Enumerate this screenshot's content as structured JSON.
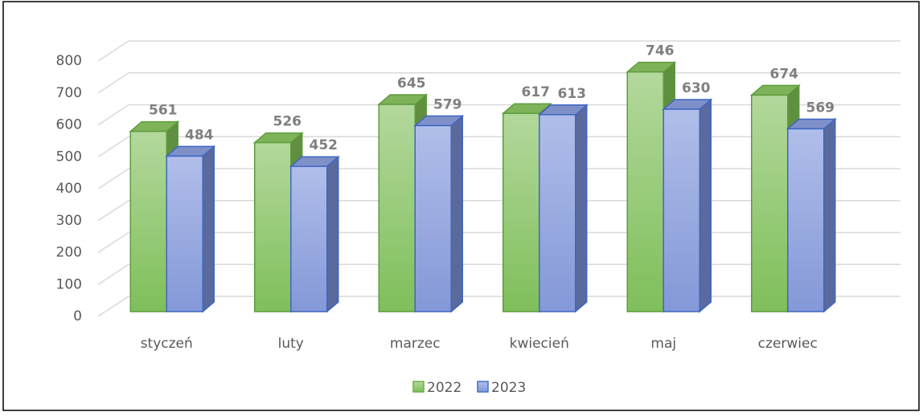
{
  "chart_data": {
    "type": "bar3d",
    "categories": [
      "styczeń",
      "luty",
      "marzec",
      "kwiecień",
      "maj",
      "czerwiec"
    ],
    "series": [
      {
        "name": "2022",
        "color": "#70ad47",
        "values": [
          561,
          526,
          645,
          617,
          746,
          674
        ]
      },
      {
        "name": "2023",
        "color": "#4472c4",
        "values": [
          484,
          452,
          579,
          613,
          630,
          569
        ]
      }
    ],
    "ylim": [
      0,
      800
    ],
    "yticks": [
      0,
      100,
      200,
      300,
      400,
      500,
      600,
      700,
      800
    ],
    "grid": true,
    "legend": "bottom"
  }
}
